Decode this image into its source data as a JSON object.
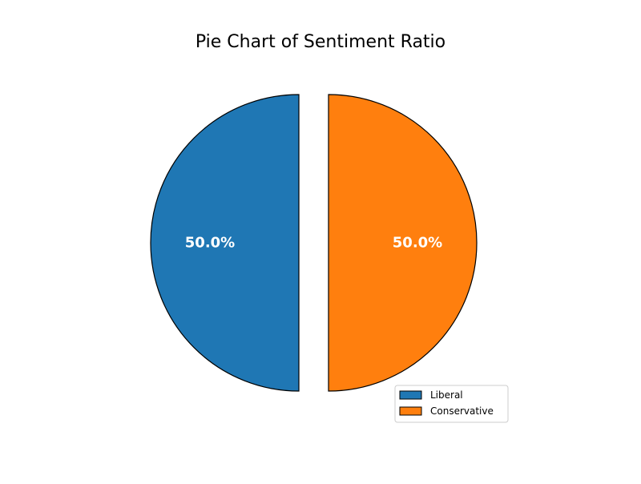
{
  "chart_data": {
    "type": "pie",
    "title": "Pie Chart of Sentiment Ratio",
    "slices": [
      {
        "label": "Liberal",
        "value": 50.0,
        "display": "50.0%",
        "color": "#1f77b4",
        "exploded": false
      },
      {
        "label": "Conservative",
        "value": 50.0,
        "display": "50.0%",
        "color": "#ff7f0e",
        "exploded": true
      }
    ],
    "legend": {
      "position": "lower-right"
    },
    "edge_color": "#000000",
    "label_color": "#ffffff"
  }
}
